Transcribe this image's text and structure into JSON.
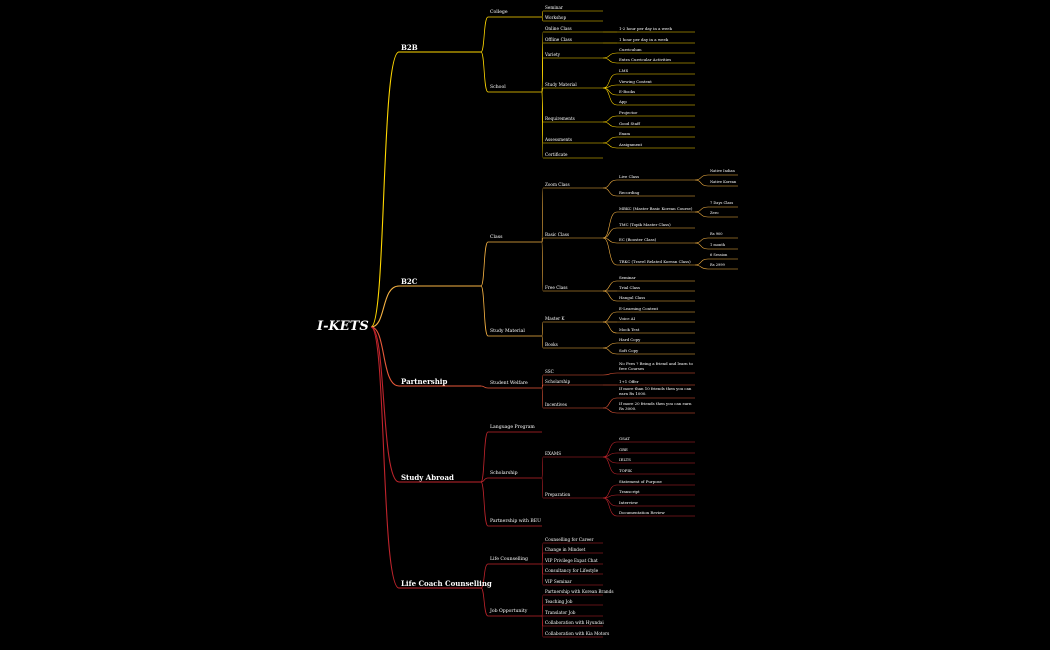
{
  "mindmap": {
    "root": {
      "label": "I-KETS",
      "children": [
        {
          "label": "B2B",
          "color": "#ffd700",
          "children": [
            {
              "label": "College",
              "children": [
                {
                  "label": "Seminar",
                  "children": []
                },
                {
                  "label": "Workshop",
                  "children": []
                }
              ]
            },
            {
              "label": "School",
              "children": [
                {
                  "label": "Online Class",
                  "children": [
                    {
                      "label": "1-2 hour per day in a week",
                      "children": []
                    }
                  ]
                },
                {
                  "label": "Offline  Class",
                  "children": [
                    {
                      "label": "1 hour per day in a week",
                      "children": []
                    }
                  ]
                },
                {
                  "label": "Variety",
                  "children": [
                    {
                      "label": "Curriculum",
                      "children": []
                    },
                    {
                      "label": "Extra Curricular Activities",
                      "children": []
                    }
                  ]
                },
                {
                  "label": "Study Material",
                  "children": [
                    {
                      "label": "LMS",
                      "children": []
                    },
                    {
                      "label": "Viewing Content",
                      "children": []
                    },
                    {
                      "label": "E-Books",
                      "children": []
                    },
                    {
                      "label": "App",
                      "children": []
                    }
                  ]
                },
                {
                  "label": "Requirements",
                  "children": [
                    {
                      "label": "Projector",
                      "children": []
                    },
                    {
                      "label": "Good Staff",
                      "children": []
                    }
                  ]
                },
                {
                  "label": "Assessments",
                  "children": [
                    {
                      "label": "Exam",
                      "children": []
                    },
                    {
                      "label": "Assignment",
                      "children": []
                    }
                  ]
                },
                {
                  "label": "Certificate",
                  "children": []
                }
              ]
            }
          ]
        },
        {
          "label": "B2C",
          "color": "#f7b343",
          "children": [
            {
              "label": "Class",
              "children": [
                {
                  "label": "Zoom Class",
                  "children": [
                    {
                      "label": "Live Class",
                      "children": [
                        {
                          "label": "Native Indian",
                          "children": []
                        },
                        {
                          "label": "Native Korean",
                          "children": []
                        }
                      ]
                    },
                    {
                      "label": "Recording",
                      "children": []
                    }
                  ]
                },
                {
                  "label": "Basic Class",
                  "children": [
                    {
                      "label": "MBKC (Master Basic Korean Course)",
                      "children": [
                        {
                          "label": "7 Days Class",
                          "children": []
                        },
                        {
                          "label": "Zero",
                          "children": []
                        }
                      ]
                    },
                    {
                      "label": "TMC (Topik Master Class)",
                      "children": []
                    },
                    {
                      "label": "EC (Booster Class)",
                      "children": [
                        {
                          "label": "Rs 900",
                          "children": []
                        },
                        {
                          "label": "1 month",
                          "children": []
                        }
                      ]
                    },
                    {
                      "label": "TRKC (Travel Related Korean Class)",
                      "children": [
                        {
                          "label": "6 Session",
                          "children": []
                        },
                        {
                          "label": "Rs 2999",
                          "children": []
                        }
                      ]
                    }
                  ]
                },
                {
                  "label": "Free  Class",
                  "children": [
                    {
                      "label": "Seminar",
                      "children": []
                    },
                    {
                      "label": "Trial Class",
                      "children": []
                    },
                    {
                      "label": "Hangul Class",
                      "children": []
                    }
                  ]
                }
              ]
            },
            {
              "label": "Study Material",
              "children": [
                {
                  "label": "Master K",
                  "children": [
                    {
                      "label": "E-Learning Content",
                      "children": []
                    },
                    {
                      "label": "Voice AI",
                      "children": []
                    },
                    {
                      "label": "Mock Test",
                      "children": []
                    }
                  ]
                },
                {
                  "label": "Books",
                  "children": [
                    {
                      "label": "Hard Copy",
                      "children": []
                    },
                    {
                      "label": "Soft Copy",
                      "children": []
                    }
                  ]
                }
              ]
            }
          ]
        },
        {
          "label": "Partnership",
          "color": "#e8593a",
          "children": [
            {
              "label": "Student Welfare",
              "children": [
                {
                  "label": "SSC",
                  "children": [
                    {
                      "label": "No Fees ? Being a friend and learn to free Courses",
                      "children": []
                    }
                  ]
                },
                {
                  "label": "Scholarship",
                  "children": [
                    {
                      "label": "1+1 Offer",
                      "children": []
                    }
                  ]
                },
                {
                  "label": "Incentives",
                  "children": [
                    {
                      "label": "If more than 10 friends then you can earn Rs 1000.",
                      "children": []
                    },
                    {
                      "label": "If more 20 friends then you can earn Rs 3000.",
                      "children": []
                    }
                  ]
                }
              ]
            }
          ]
        },
        {
          "label": "Study Abroad",
          "color": "#c0242c",
          "children": [
            {
              "label": "Language Program",
              "children": []
            },
            {
              "label": "Scholarship",
              "children": [
                {
                  "label": "EXAMS",
                  "children": [
                    {
                      "label": "GSAT",
                      "children": []
                    },
                    {
                      "label": "GRE",
                      "children": []
                    },
                    {
                      "label": "IELTS",
                      "children": []
                    },
                    {
                      "label": "TOPIK",
                      "children": []
                    }
                  ]
                },
                {
                  "label": "Preparation",
                  "children": [
                    {
                      "label": "Statement of Purpose",
                      "children": []
                    },
                    {
                      "label": "Transcript",
                      "children": []
                    },
                    {
                      "label": "Interview",
                      "children": []
                    },
                    {
                      "label": "Documentation Review",
                      "children": []
                    }
                  ]
                }
              ]
            },
            {
              "label": "Partnership with BEU",
              "children": []
            }
          ]
        },
        {
          "label": "Life Coach Counselling",
          "color": "#c0242c",
          "children": [
            {
              "label": "Life Counselling",
              "children": [
                {
                  "label": "Counselling for Career",
                  "children": []
                },
                {
                  "label": "Change in Mindset",
                  "children": []
                },
                {
                  "label": "VIP Privilege Expat Chat",
                  "children": []
                },
                {
                  "label": "Consultancy for Lifestyle",
                  "children": []
                },
                {
                  "label": "VIP Seminar",
                  "children": []
                }
              ]
            },
            {
              "label": "Job Opportunity",
              "children": [
                {
                  "label": "Partnership with Korean Brands",
                  "children": []
                },
                {
                  "label": "Teaching Job",
                  "children": []
                },
                {
                  "label": "Translator Job",
                  "children": []
                },
                {
                  "label": "Collaboration with Hyundai",
                  "children": []
                },
                {
                  "label": "Collaboration with Kia Motors",
                  "children": []
                }
              ]
            }
          ]
        }
      ]
    }
  }
}
